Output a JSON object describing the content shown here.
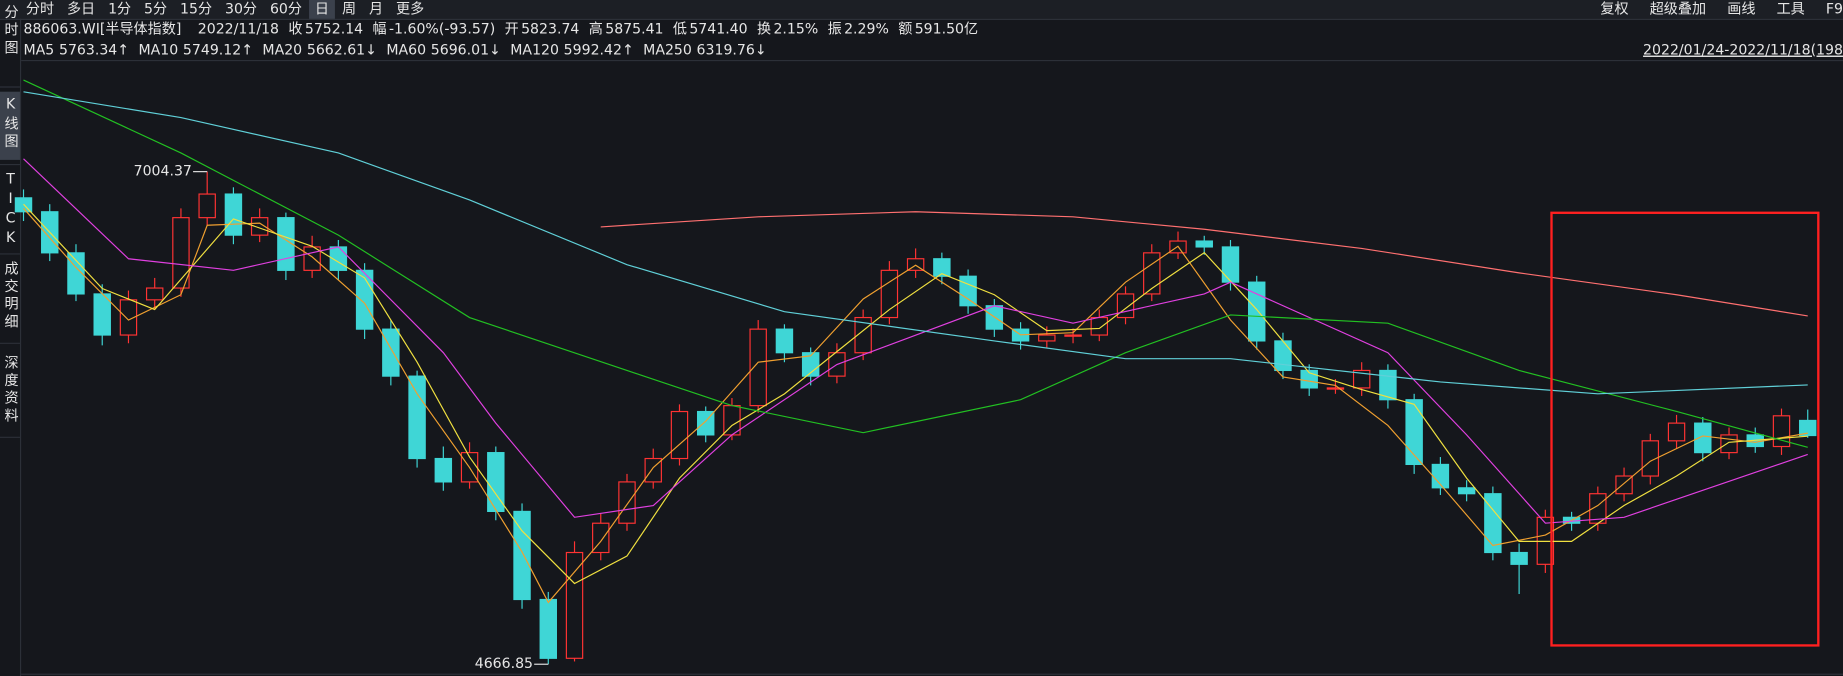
{
  "toolbar": {
    "tabs": [
      "分时",
      "多日",
      "1分",
      "5分",
      "15分",
      "30分",
      "60分",
      "日",
      "周",
      "月",
      "更多"
    ],
    "active": 7,
    "right": [
      "复权",
      "超级叠加",
      "画线",
      "工具",
      "F9"
    ]
  },
  "sidebar": {
    "items": [
      "分时图",
      "K线图",
      "TICK",
      "成交明细",
      "深度资料"
    ],
    "active": 1
  },
  "quote": {
    "code": "886063.WI[半导体指数]",
    "date": "2022/11/18",
    "fields": [
      {
        "label": "收",
        "value": "5752.14",
        "color": "#2fd35a"
      },
      {
        "label": "幅",
        "value": "-1.60%(-93.57)",
        "color": "#2fd35a"
      },
      {
        "label": "开",
        "value": "5823.74",
        "color": "#2fd35a"
      },
      {
        "label": "高",
        "value": "5875.41",
        "color": "#ff4040"
      },
      {
        "label": "低",
        "value": "5741.40",
        "color": "#2fd35a"
      },
      {
        "label": "换",
        "value": "2.15%",
        "color": "#e6e6e6"
      },
      {
        "label": "振",
        "value": "2.29%",
        "color": "#e6e6e6"
      },
      {
        "label": "额",
        "value": "591.50亿",
        "color": "#e6e6e6"
      }
    ]
  },
  "range": "2022/01/24-2022/11/18(198",
  "chart_data": {
    "type": "candlestick",
    "ylim": [
      4611,
      7512
    ],
    "xlim": [
      0,
      68
    ],
    "up_color": "#ff3333",
    "down_color": "#3fd6d6",
    "open": [
      6880,
      6814,
      6619,
      6424,
      6229,
      6396,
      6452,
      6786,
      6898,
      6703,
      6786,
      6536,
      6647,
      6536,
      6257,
      6034,
      5643,
      5532,
      5671,
      5392,
      4974,
      4695,
      5197,
      5336,
      5532,
      5643,
      5866,
      5755,
      5894,
      6257,
      6145,
      6034,
      6145,
      6312,
      6536,
      6591,
      6508,
      6368,
      6257,
      6201,
      6229,
      6229,
      6312,
      6424,
      6619,
      6675,
      6647,
      6480,
      6201,
      6061,
      5978,
      5978,
      6061,
      5922,
      5615,
      5504,
      5476,
      5197,
      5141,
      5364,
      5336,
      5476,
      5560,
      5727,
      5811,
      5671,
      5755,
      5700,
      5823.74
    ],
    "high": [
      6920,
      6850,
      6660,
      6470,
      6440,
      6500,
      6830,
      7004.37,
      6930,
      6830,
      6810,
      6700,
      6680,
      6570,
      6300,
      6060,
      5700,
      5720,
      5700,
      5430,
      5010,
      5250,
      5380,
      5570,
      5690,
      5900,
      5890,
      5930,
      6300,
      6280,
      6170,
      6190,
      6350,
      6580,
      6640,
      6620,
      6540,
      6400,
      6290,
      6270,
      6260,
      6350,
      6460,
      6660,
      6720,
      6700,
      6680,
      6510,
      6240,
      6090,
      6020,
      6100,
      6090,
      5950,
      5650,
      5540,
      5510,
      5240,
      5400,
      5390,
      5510,
      5600,
      5760,
      5850,
      5840,
      5790,
      5790,
      5880,
      5875.41
    ],
    "low": [
      6770,
      6580,
      6390,
      6180,
      6190,
      6350,
      6410,
      6750,
      6660,
      6670,
      6490,
      6500,
      6490,
      6210,
      5990,
      5600,
      5490,
      5500,
      5350,
      4930,
      4666.85,
      4680,
      5160,
      5300,
      5500,
      5610,
      5720,
      5730,
      5860,
      6100,
      5990,
      6000,
      6110,
      6280,
      6500,
      6470,
      6330,
      6220,
      6160,
      6170,
      6190,
      6200,
      6280,
      6390,
      6590,
      6610,
      6440,
      6160,
      6020,
      5940,
      5950,
      5940,
      5880,
      5570,
      5470,
      5440,
      5160,
      5000,
      5100,
      5300,
      5300,
      5440,
      5520,
      5690,
      5630,
      5640,
      5670,
      5660,
      5741.4
    ],
    "close": [
      6814,
      6619,
      6424,
      6229,
      6396,
      6452,
      6786,
      6898,
      6703,
      6786,
      6536,
      6647,
      6536,
      6257,
      6034,
      5643,
      5532,
      5671,
      5392,
      4974,
      4695,
      5197,
      5336,
      5532,
      5643,
      5866,
      5755,
      5894,
      6257,
      6145,
      6034,
      6145,
      6312,
      6536,
      6591,
      6508,
      6368,
      6257,
      6201,
      6229,
      6229,
      6312,
      6424,
      6619,
      6675,
      6647,
      6480,
      6201,
      6061,
      5978,
      5978,
      6061,
      5922,
      5615,
      5504,
      5476,
      5197,
      5141,
      5364,
      5336,
      5476,
      5560,
      5727,
      5811,
      5671,
      5755,
      5700,
      5845.71,
      5752.14
    ],
    "max_label": 7,
    "min_label": 20,
    "series": [
      {
        "name": "MA5",
        "color": "#f0a030",
        "arrow": "↑",
        "x": [
          0,
          2,
          4,
          6,
          7,
          9,
          11,
          13,
          15,
          17,
          19,
          20,
          22,
          24,
          26,
          28,
          30,
          32,
          34,
          36,
          38,
          40,
          42,
          44,
          46,
          48,
          50,
          52,
          54,
          56,
          58,
          60,
          62,
          64,
          66,
          68
        ],
        "values": [
          6830,
          6550,
          6300,
          6420,
          6750,
          6760,
          6600,
          6380,
          5950,
          5600,
          5200,
          4960,
          5250,
          5600,
          5820,
          6100,
          6130,
          6400,
          6560,
          6400,
          6230,
          6240,
          6480,
          6650,
          6300,
          6030,
          5990,
          5800,
          5520,
          5230,
          5280,
          5420,
          5630,
          5750,
          5720,
          5763.34
        ]
      },
      {
        "name": "MA10",
        "color": "#f0e040",
        "arrow": "↑",
        "x": [
          0,
          3,
          5,
          8,
          11,
          13,
          15,
          17,
          19,
          21,
          23,
          25,
          27,
          29,
          31,
          33,
          35,
          37,
          39,
          41,
          43,
          45,
          47,
          49,
          51,
          53,
          55,
          57,
          59,
          61,
          63,
          65,
          68
        ],
        "values": [
          6850,
          6450,
          6350,
          6780,
          6650,
          6500,
          6100,
          5650,
          5300,
          5050,
          5180,
          5550,
          5800,
          5950,
          6150,
          6350,
          6520,
          6420,
          6250,
          6260,
          6450,
          6620,
          6350,
          6050,
          5970,
          5900,
          5550,
          5250,
          5250,
          5420,
          5560,
          5720,
          5749.12
        ]
      },
      {
        "name": "MA20",
        "color": "#e040e0",
        "arrow": "↓",
        "x": [
          0,
          4,
          8,
          12,
          16,
          18,
          21,
          24,
          27,
          31,
          37,
          40,
          45,
          46,
          52,
          55,
          58,
          61,
          68
        ],
        "values": [
          7065,
          6591,
          6536,
          6647,
          6145,
          5811,
          5364,
          5420,
          5755,
          6089,
          6368,
          6285,
          6424,
          6480,
          6145,
          5755,
          5336,
          5364,
          5662.61
        ]
      },
      {
        "name": "MA60",
        "color": "#22c022",
        "arrow": "↓",
        "x": [
          0,
          6,
          12,
          17,
          23,
          27,
          32,
          38,
          42,
          46,
          52,
          57,
          63,
          68
        ],
        "values": [
          7439,
          7093,
          6703,
          6312,
          6061,
          5894,
          5766,
          5922,
          6145,
          6324,
          6285,
          6061,
          5866,
          5696.01
        ]
      },
      {
        "name": "MA120",
        "color": "#60d0d8",
        "arrow": "↑",
        "x": [
          0,
          6,
          12,
          17,
          23,
          29,
          37,
          42,
          46,
          54,
          60,
          68
        ],
        "values": [
          7383,
          7261,
          7093,
          6870,
          6563,
          6340,
          6201,
          6117,
          6117,
          6006,
          5950,
          5992.42
        ]
      },
      {
        "name": "MA250",
        "color": "#ff7070",
        "arrow": "↓",
        "x": [
          22,
          28,
          34,
          40,
          45,
          51,
          57,
          63,
          68
        ],
        "values": [
          6742,
          6790,
          6814,
          6790,
          6731,
          6640,
          6524,
          6420,
          6319.76
        ]
      }
    ]
  }
}
